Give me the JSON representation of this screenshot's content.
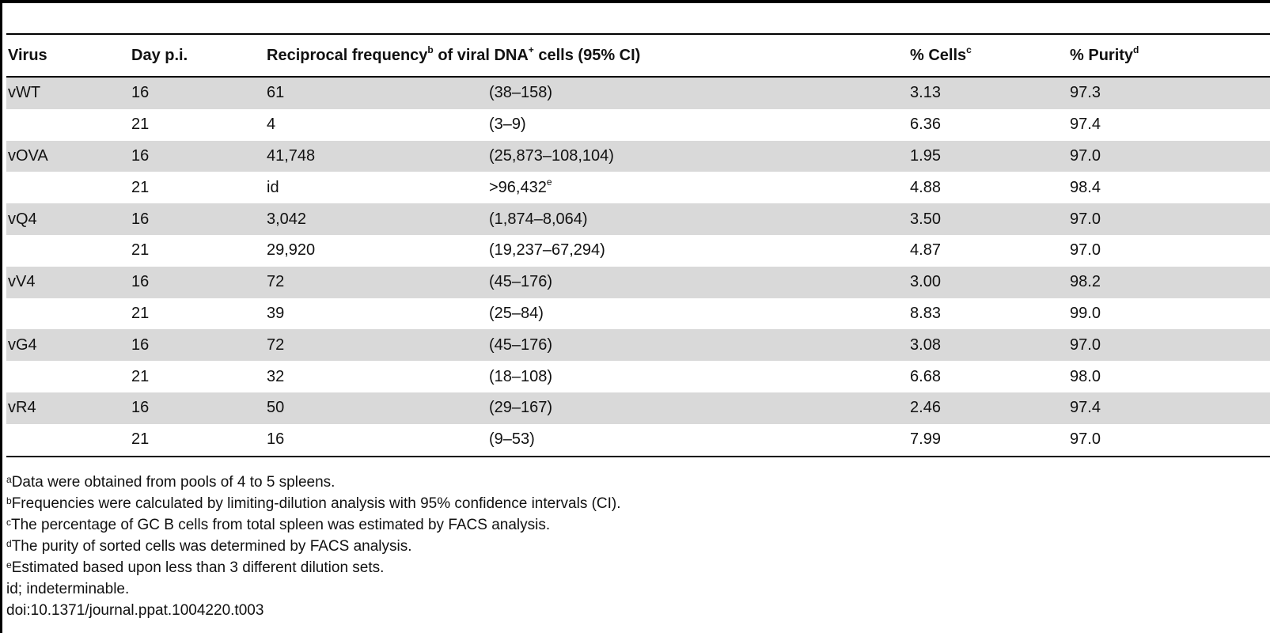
{
  "table": {
    "headers": {
      "virus": "Virus",
      "day": "Day p.i.",
      "freq_pre": "Reciprocal frequency",
      "freq_sup": "b",
      "freq_post": " of viral DNA",
      "freq_sup2": "+",
      "freq_post2": " cells (95% CI)",
      "cells": "% Cells",
      "cells_sup": "c",
      "purity": "% Purity",
      "purity_sup": "d"
    },
    "rows": [
      {
        "virus": "vWT",
        "day": "16",
        "freq": "61",
        "ci": "(38–158)",
        "ci_sup": "",
        "cells": "3.13",
        "purity": "97.3"
      },
      {
        "virus": "",
        "day": "21",
        "freq": "4",
        "ci": "(3–9)",
        "ci_sup": "",
        "cells": "6.36",
        "purity": "97.4"
      },
      {
        "virus": "vOVA",
        "day": "16",
        "freq": "41,748",
        "ci": "(25,873–108,104)",
        "ci_sup": "",
        "cells": "1.95",
        "purity": "97.0"
      },
      {
        "virus": "",
        "day": "21",
        "freq": "id",
        "ci": ">96,432",
        "ci_sup": "e",
        "cells": "4.88",
        "purity": "98.4"
      },
      {
        "virus": "vQ4",
        "day": "16",
        "freq": "3,042",
        "ci": "(1,874–8,064)",
        "ci_sup": "",
        "cells": "3.50",
        "purity": "97.0"
      },
      {
        "virus": "",
        "day": "21",
        "freq": "29,920",
        "ci": "(19,237–67,294)",
        "ci_sup": "",
        "cells": "4.87",
        "purity": "97.0"
      },
      {
        "virus": "vV4",
        "day": "16",
        "freq": "72",
        "ci": "(45–176)",
        "ci_sup": "",
        "cells": "3.00",
        "purity": "98.2"
      },
      {
        "virus": "",
        "day": "21",
        "freq": "39",
        "ci": "(25–84)",
        "ci_sup": "",
        "cells": "8.83",
        "purity": "99.0"
      },
      {
        "virus": "vG4",
        "day": "16",
        "freq": "72",
        "ci": "(45–176)",
        "ci_sup": "",
        "cells": "3.08",
        "purity": "97.0"
      },
      {
        "virus": "",
        "day": "21",
        "freq": "32",
        "ci": "(18–108)",
        "ci_sup": "",
        "cells": "6.68",
        "purity": "98.0"
      },
      {
        "virus": "vR4",
        "day": "16",
        "freq": "50",
        "ci": "(29–167)",
        "ci_sup": "",
        "cells": "2.46",
        "purity": "97.4"
      },
      {
        "virus": "",
        "day": "21",
        "freq": "16",
        "ci": "(9–53)",
        "ci_sup": "",
        "cells": "7.99",
        "purity": "97.0"
      }
    ]
  },
  "notes": [
    {
      "sup": "a",
      "text": "Data were obtained from pools of 4 to 5 spleens."
    },
    {
      "sup": "b",
      "text": "Frequencies were calculated by limiting-dilution analysis with 95% confidence intervals (CI)."
    },
    {
      "sup": "c",
      "text": "The percentage of GC B cells from total spleen was estimated by FACS analysis."
    },
    {
      "sup": "d",
      "text": "The purity of sorted cells was determined by FACS analysis."
    },
    {
      "sup": "e",
      "text": "Estimated based upon less than 3 different dilution sets."
    },
    {
      "sup": "",
      "text": "id; indeterminable."
    },
    {
      "sup": "",
      "text": "doi:10.1371/journal.ppat.1004220.t003"
    }
  ],
  "colors": {
    "shade": "#d9d9d9",
    "rule": "#000000"
  }
}
